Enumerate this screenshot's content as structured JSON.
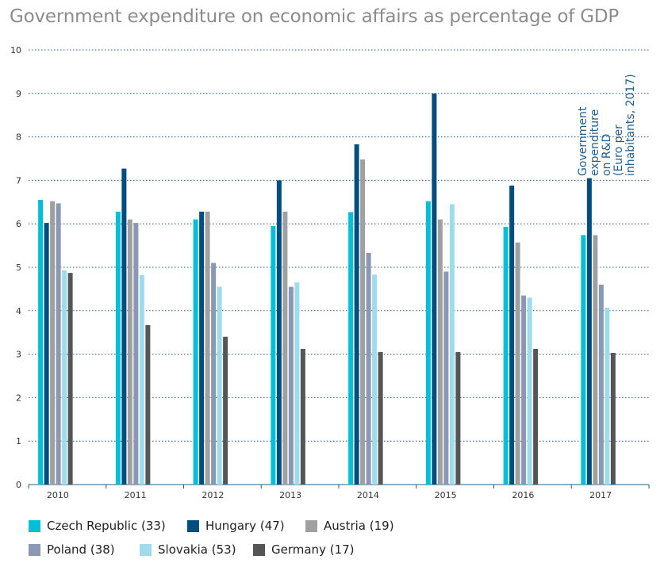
{
  "chart_data": {
    "type": "bar",
    "title": "Government expenditure on economic affairs as percentage of GDP",
    "annotation": "Government expenditure on R&D (Euro per inhabitants, 2017)",
    "categories": [
      "2010",
      "2011",
      "2012",
      "2013",
      "2014",
      "2015",
      "2016",
      "2017"
    ],
    "ylim": [
      0,
      10
    ],
    "yticks": [
      "0",
      "1",
      "2",
      "3",
      "4",
      "5",
      "6",
      "7",
      "8",
      "9",
      "10"
    ],
    "grid": true,
    "legend_position": "bottom",
    "series": [
      {
        "name": "Czech Republic (33)",
        "color": "#00c0d8",
        "values": [
          6.55,
          6.28,
          6.1,
          5.95,
          6.27,
          6.52,
          5.93,
          5.74
        ]
      },
      {
        "name": "Hungary (47)",
        "color": "#004d80",
        "values": [
          6.02,
          7.27,
          6.28,
          7.0,
          7.83,
          9.0,
          6.88,
          7.05
        ]
      },
      {
        "name": "Austria (19)",
        "color": "#a0a0a0",
        "values": [
          6.52,
          6.1,
          6.28,
          6.28,
          7.48,
          6.1,
          5.57,
          5.74
        ]
      },
      {
        "name": "Poland (38)",
        "color": "#8a98b4",
        "values": [
          6.47,
          6.02,
          5.1,
          4.55,
          5.33,
          4.9,
          4.35,
          4.6
        ]
      },
      {
        "name": "Slovakia (53)",
        "color": "#9edcec",
        "values": [
          4.93,
          4.82,
          4.55,
          4.65,
          4.83,
          6.45,
          4.3,
          4.07
        ]
      },
      {
        "name": "Germany (17)",
        "color": "#555555",
        "values": [
          4.87,
          3.67,
          3.4,
          3.12,
          3.05,
          3.05,
          3.12,
          3.03
        ]
      }
    ]
  }
}
